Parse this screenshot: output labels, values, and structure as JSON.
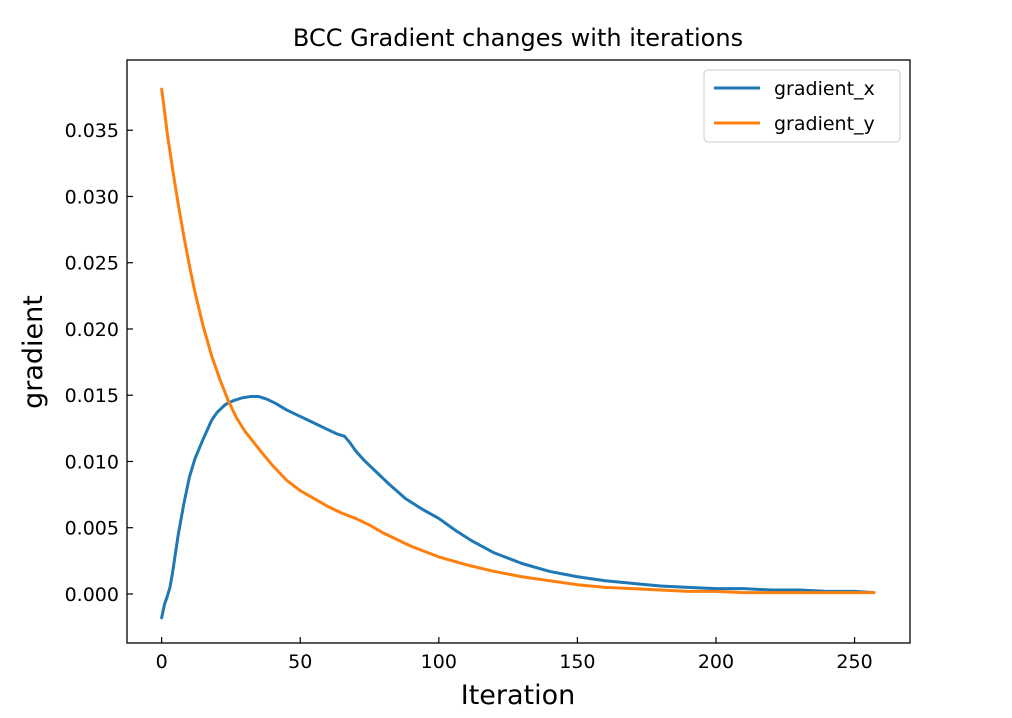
{
  "chart_data": {
    "type": "line",
    "title": "BCC Gradient changes with iterations",
    "xlabel": "Iteration",
    "ylabel": "gradient",
    "xlim": [
      -12.5,
      270
    ],
    "ylim": [
      -0.0037,
      0.0403
    ],
    "xticks": [
      0,
      50,
      100,
      150,
      200,
      250
    ],
    "yticks": [
      0.0,
      0.005,
      0.01,
      0.015,
      0.02,
      0.025,
      0.03,
      0.035
    ],
    "xtick_labels": [
      "0",
      "50",
      "100",
      "150",
      "200",
      "250"
    ],
    "ytick_labels": [
      "0.000",
      "0.005",
      "0.010",
      "0.015",
      "0.020",
      "0.025",
      "0.030",
      "0.035"
    ],
    "grid": false,
    "legend": "top-right",
    "series": [
      {
        "name": "gradient_x",
        "color": "#1f77b4",
        "x": [
          0,
          1,
          2,
          3,
          4,
          6,
          8,
          10,
          12,
          15,
          18,
          20,
          23,
          26,
          29,
          32,
          35,
          38,
          41,
          45,
          50,
          53,
          56,
          60,
          63,
          66,
          68,
          70,
          73,
          77,
          82,
          88,
          94,
          100,
          106,
          112,
          120,
          130,
          140,
          150,
          160,
          170,
          180,
          190,
          200,
          210,
          220,
          230,
          240,
          250,
          257
        ],
        "y": [
          -0.0018,
          -0.0008,
          -0.0002,
          0.0005,
          0.0017,
          0.0045,
          0.0068,
          0.0088,
          0.0102,
          0.0117,
          0.0131,
          0.0137,
          0.0143,
          0.0146,
          0.0148,
          0.0149,
          0.0149,
          0.0147,
          0.0144,
          0.0139,
          0.0134,
          0.0131,
          0.0128,
          0.0124,
          0.0121,
          0.0119,
          0.0114,
          0.0108,
          0.0101,
          0.0093,
          0.0083,
          0.0072,
          0.0064,
          0.0057,
          0.0048,
          0.004,
          0.0031,
          0.0023,
          0.0017,
          0.0013,
          0.001,
          0.0008,
          0.0006,
          0.0005,
          0.0004,
          0.0004,
          0.0003,
          0.0003,
          0.0002,
          0.0002,
          0.0001
        ]
      },
      {
        "name": "gradient_y",
        "color": "#ff7f0e",
        "x": [
          0,
          1,
          2,
          3,
          4,
          6,
          8,
          10,
          12,
          15,
          18,
          21,
          24,
          27,
          30,
          33,
          36,
          40,
          45,
          50,
          55,
          60,
          65,
          70,
          75,
          80,
          90,
          100,
          110,
          120,
          130,
          140,
          150,
          160,
          170,
          180,
          190,
          200,
          210,
          220,
          230,
          240,
          250,
          257
        ],
        "y": [
          0.0381,
          0.0365,
          0.0348,
          0.0334,
          0.032,
          0.0294,
          0.027,
          0.0248,
          0.0228,
          0.0202,
          0.018,
          0.0162,
          0.0146,
          0.0133,
          0.0123,
          0.0115,
          0.0107,
          0.0097,
          0.0086,
          0.0078,
          0.0072,
          0.0066,
          0.0061,
          0.0057,
          0.0052,
          0.0046,
          0.0036,
          0.0028,
          0.0022,
          0.0017,
          0.0013,
          0.001,
          0.0007,
          0.0005,
          0.0004,
          0.0003,
          0.0002,
          0.0002,
          0.0001,
          0.0001,
          0.0001,
          0.0001,
          0.0001,
          0.0001
        ]
      }
    ]
  }
}
